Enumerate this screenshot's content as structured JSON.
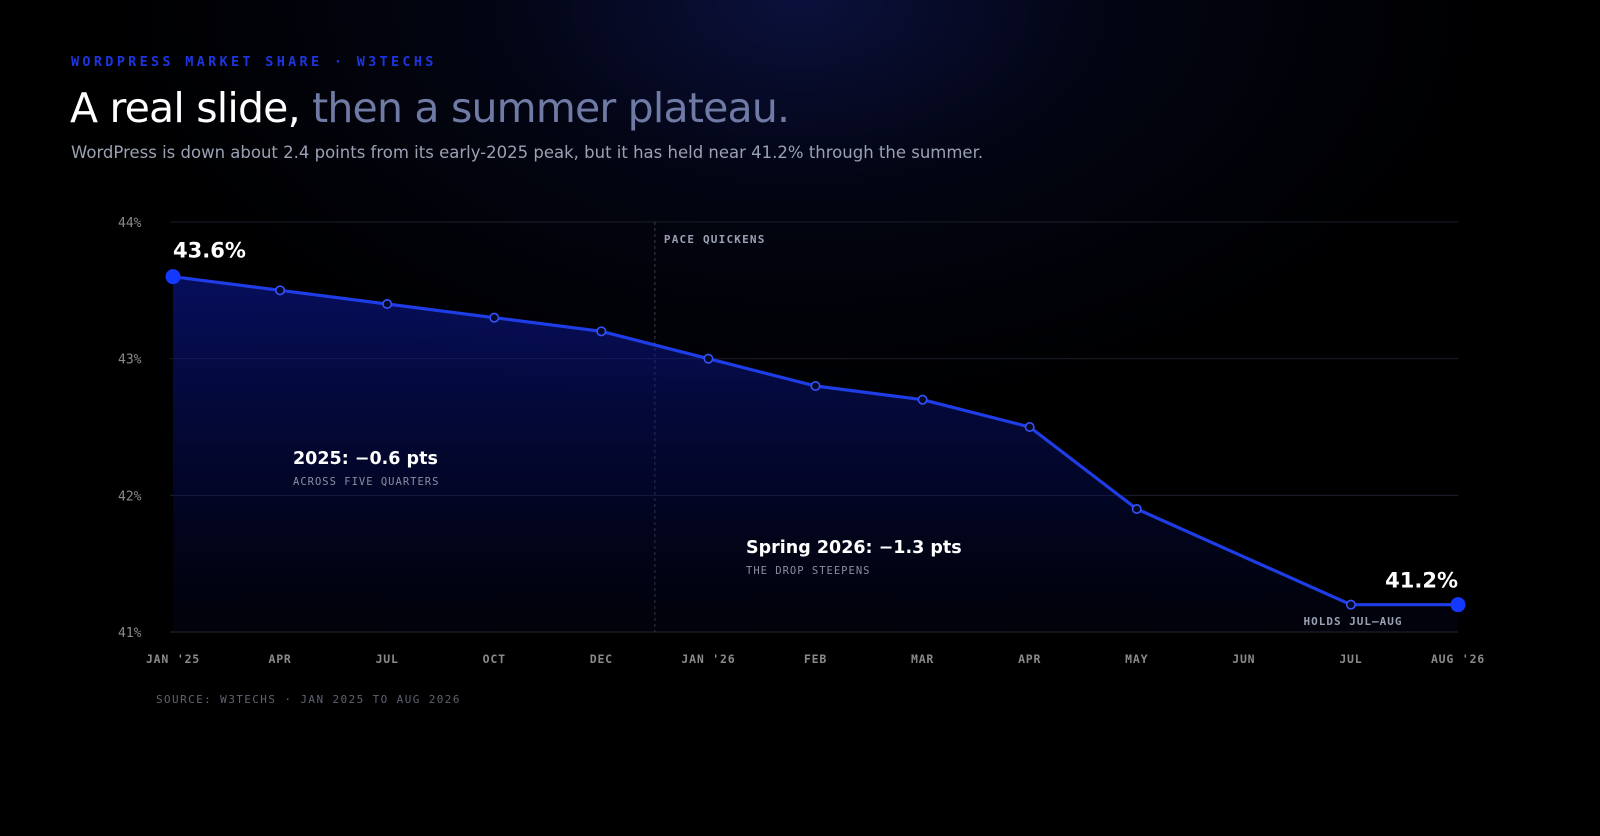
{
  "header": {
    "eyebrow": "WORDPRESS MARKET SHARE · W3TECHS",
    "headline_main": "A real slide,",
    "headline_muted": " then a summer plateau.",
    "subtitle": "WordPress is down about 2.4 points from its early-2025 peak, but it has held near 41.2% through the summer."
  },
  "chart_data": {
    "type": "area",
    "x": [
      "JAN '25",
      "APR",
      "JUL",
      "OCT",
      "DEC",
      "JAN '26",
      "FEB",
      "MAR",
      "APR",
      "MAY",
      "JUN",
      "JUL",
      "AUG '26"
    ],
    "values": [
      43.6,
      43.5,
      43.4,
      43.3,
      43.2,
      43.0,
      42.8,
      42.7,
      42.5,
      41.9,
      null,
      41.2,
      41.2
    ],
    "ylim": [
      41,
      44
    ],
    "yticks": [
      41,
      42,
      43,
      44
    ],
    "ytick_labels": [
      "41%",
      "42%",
      "43%",
      "44%"
    ],
    "grid": true,
    "marker_line": {
      "between": [
        "DEC",
        "JAN '26"
      ],
      "label": "PACE QUICKENS"
    },
    "endpoint_labels": {
      "start": "43.6%",
      "end": "41.2%"
    },
    "annotations": [
      {
        "title": "2025: −0.6 pts",
        "note": "ACROSS FIVE QUARTERS"
      },
      {
        "title": "Spring 2026: −1.3 pts",
        "note": "THE DROP STEEPENS"
      },
      {
        "note": "HOLDS JUL–AUG"
      }
    ],
    "source": "SOURCE: W3TECHS · JAN 2025 TO AUG 2026"
  },
  "colors": {
    "accent": "#1d35e0",
    "line": "#1f3de6",
    "muted_headline": "#6f7ba5",
    "text_muted": "#9aa1b3",
    "axis_text": "#8a8a8a"
  }
}
